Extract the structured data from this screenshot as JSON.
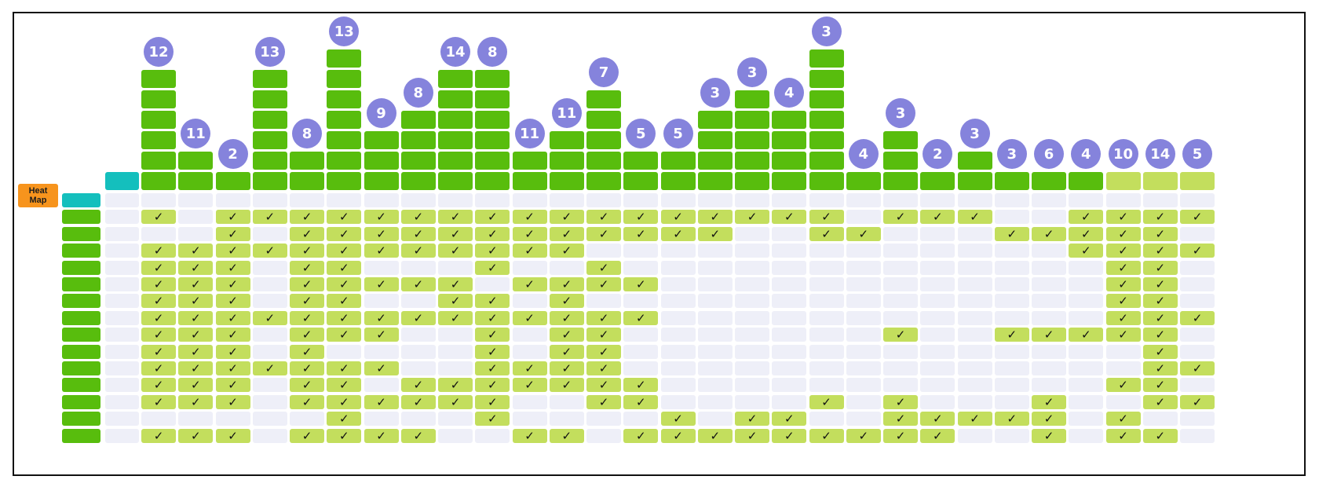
{
  "title_badge": {
    "line1": "Heat",
    "line2": "Map",
    "color": "#f7941d"
  },
  "check_mark": "✓",
  "colors": {
    "bar": "#58bd0d",
    "bar_light": "#c3de5d",
    "bubble": "#8583dc",
    "cell_empty": "#eeeff8",
    "cell_checked": "#c3de5d",
    "teal": "#14bfbd",
    "row_label": "#58bd0d"
  },
  "columns": [
    {
      "count": "12",
      "blocks": 6,
      "light": false
    },
    {
      "count": "11",
      "blocks": 2,
      "light": false
    },
    {
      "count": "2",
      "blocks": 1,
      "light": false
    },
    {
      "count": "13",
      "blocks": 6,
      "light": false
    },
    {
      "count": "8",
      "blocks": 2,
      "light": false
    },
    {
      "count": "13",
      "blocks": 7,
      "light": false
    },
    {
      "count": "9",
      "blocks": 3,
      "light": false
    },
    {
      "count": "8",
      "blocks": 4,
      "light": false
    },
    {
      "count": "14",
      "blocks": 6,
      "light": false
    },
    {
      "count": "8",
      "blocks": 6,
      "light": false
    },
    {
      "count": "11",
      "blocks": 2,
      "light": false
    },
    {
      "count": "11",
      "blocks": 3,
      "light": false
    },
    {
      "count": "7",
      "blocks": 5,
      "light": false
    },
    {
      "count": "5",
      "blocks": 2,
      "light": false
    },
    {
      "count": "5",
      "blocks": 2,
      "light": false
    },
    {
      "count": "3",
      "blocks": 4,
      "light": false
    },
    {
      "count": "3",
      "blocks": 5,
      "light": false
    },
    {
      "count": "4",
      "blocks": 4,
      "light": false
    },
    {
      "count": "3",
      "blocks": 7,
      "light": false
    },
    {
      "count": "4",
      "blocks": 1,
      "light": false
    },
    {
      "count": "3",
      "blocks": 3,
      "light": false
    },
    {
      "count": "2",
      "blocks": 1,
      "light": false
    },
    {
      "count": "3",
      "blocks": 2,
      "light": false
    },
    {
      "count": "3",
      "blocks": 1,
      "light": false
    },
    {
      "count": "6",
      "blocks": 1,
      "light": false
    },
    {
      "count": "4",
      "blocks": 1,
      "light": false
    },
    {
      "count": "10",
      "blocks": 1,
      "light": true
    },
    {
      "count": "14",
      "blocks": 1,
      "light": true
    },
    {
      "count": "5",
      "blocks": 1,
      "light": true
    }
  ],
  "grid": [
    "0000000000000000000000000000000",
    "0010111111111111111110111001111",
    "0000101111111111110011000111110",
    "0011111111111100000000000001111",
    "0011101100010010000000000000110",
    "0011101111101111000000000000110",
    "0011101100110100000000000000110",
    "0011111111111111000000000000111",
    "0011101110010110000000100111110",
    "0011101000010110000000000000010",
    "0011111110011110000000000000011",
    "0011101101111111000000000000110",
    "0011101111110011000010100010011",
    "0000000100010000101100111110100",
    "0011101111001101111111110010110"
  ]
}
